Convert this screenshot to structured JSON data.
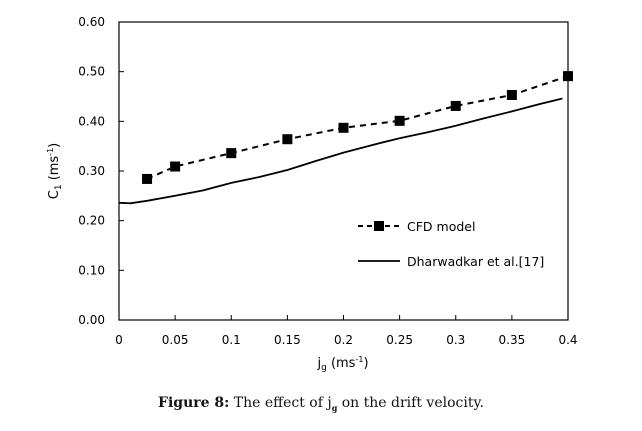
{
  "chart_data": {
    "type": "line",
    "title": "",
    "xlabel": "j",
    "xlabel_sub": "g",
    "xlabel_unit_pre": " (ms",
    "xlabel_unit_sup": "-1",
    "xlabel_unit_post": ")",
    "ylabel": "C",
    "ylabel_sub": "1",
    "ylabel_unit_pre": " (ms",
    "ylabel_unit_sup": "-1",
    "ylabel_unit_post": ")",
    "xlim": [
      0,
      0.4
    ],
    "ylim": [
      0,
      0.6
    ],
    "x_ticks": [
      0,
      0.05,
      0.1,
      0.15,
      0.2,
      0.25,
      0.3,
      0.35,
      0.4
    ],
    "x_tick_labels": [
      "0",
      "0.05",
      "0.1",
      "0.15",
      "0.2",
      "0.25",
      "0.3",
      "0.35",
      "0.4"
    ],
    "y_ticks": [
      0,
      0.1,
      0.2,
      0.3,
      0.4,
      0.5,
      0.6
    ],
    "y_tick_labels": [
      "0.00",
      "0.10",
      "0.20",
      "0.30",
      "0.40",
      "0.50",
      "0.60"
    ],
    "grid": false,
    "legend_position": "center-right",
    "series": [
      {
        "name": "CFD model",
        "style": "dashed-square-markers",
        "x": [
          0.025,
          0.05,
          0.1,
          0.15,
          0.2,
          0.25,
          0.3,
          0.35,
          0.4
        ],
        "y": [
          0.284,
          0.309,
          0.336,
          0.364,
          0.387,
          0.401,
          0.431,
          0.453,
          0.491
        ]
      },
      {
        "name": "Dharwadkar et al.[17]",
        "style": "solid",
        "x": [
          0,
          0.01,
          0.025,
          0.05,
          0.075,
          0.1,
          0.125,
          0.15,
          0.175,
          0.2,
          0.225,
          0.25,
          0.275,
          0.3,
          0.325,
          0.35,
          0.375,
          0.395
        ],
        "y": [
          0.236,
          0.235,
          0.24,
          0.25,
          0.261,
          0.276,
          0.288,
          0.302,
          0.32,
          0.337,
          0.352,
          0.366,
          0.378,
          0.391,
          0.406,
          0.42,
          0.435,
          0.446
        ]
      }
    ]
  },
  "caption": {
    "label": "Figure 8:",
    "text_pre": " The effect of j",
    "text_sub": "g",
    "text_post": " on the drift velocity."
  }
}
